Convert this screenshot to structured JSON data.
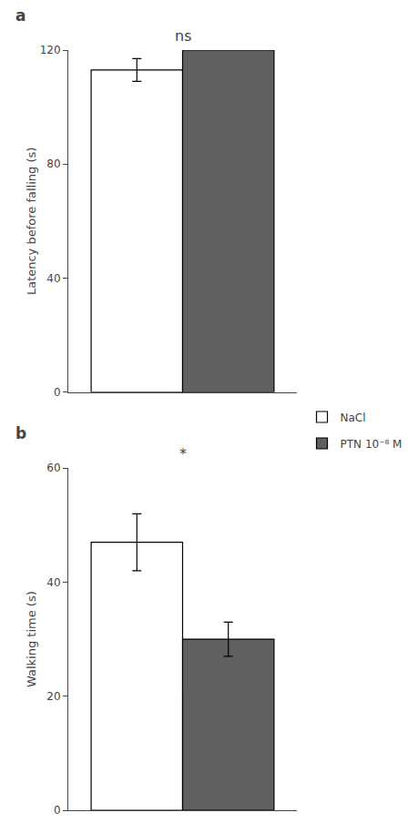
{
  "chart_data": [
    {
      "type": "bar",
      "title": "a",
      "ylabel": "Latency before falling (s)",
      "categories": [
        null
      ],
      "series": [
        {
          "name": "NaCl",
          "color": "#ffffff",
          "values": [
            113
          ],
          "errors": [
            4
          ]
        },
        {
          "name": "PTN 10⁻⁸ M",
          "color": "#606060",
          "values": [
            120
          ]
        }
      ],
      "ylim": [
        0,
        120
      ],
      "yticks": [
        0,
        40,
        80,
        120
      ],
      "annotation": "ns",
      "grid": false,
      "legend": "right",
      "tick_labels": "y"
    },
    {
      "type": "bar",
      "title": "b",
      "ylabel": "Walking time (s)",
      "categories": [
        null
      ],
      "series": [
        {
          "name": "NaCl",
          "color": "#ffffff",
          "values": [
            47
          ],
          "errors": [
            5
          ]
        },
        {
          "name": "PTN 10⁻⁸ M",
          "color": "#606060",
          "values": [
            30
          ],
          "errors": [
            3
          ]
        }
      ],
      "ylim": [
        0,
        60
      ],
      "yticks": [
        0,
        20,
        40,
        60
      ],
      "annotation": "*",
      "grid": false,
      "legend": "right",
      "tick_labels": "y"
    }
  ]
}
